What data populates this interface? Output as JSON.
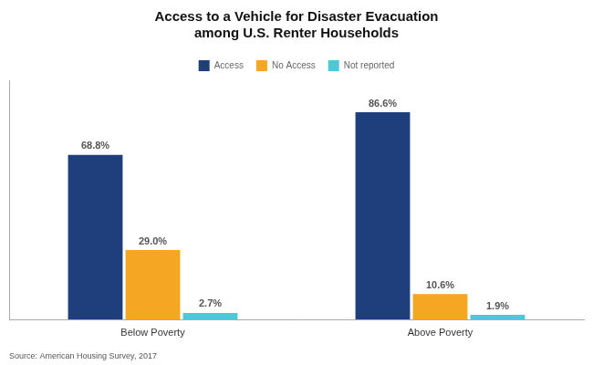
{
  "chart_data": {
    "type": "bar",
    "title": "Access to a Vehicle for Disaster Evacuation\namong U.S. Renter Households",
    "categories": [
      "Below Poverty",
      "Above Poverty"
    ],
    "series": [
      {
        "name": "Access",
        "color": "#1F3E7C",
        "values": [
          68.8,
          86.6
        ],
        "value_labels": [
          "68.8%",
          "86.6%"
        ]
      },
      {
        "name": "No Access",
        "color": "#F5A623",
        "values": [
          29.0,
          10.6
        ],
        "value_labels": [
          "29.0%",
          "10.6%"
        ]
      },
      {
        "name": "Not reported",
        "color": "#4DC8D8",
        "values": [
          2.7,
          1.9
        ],
        "value_labels": [
          "2.7%",
          "1.9%"
        ]
      }
    ],
    "ylim": [
      0,
      100
    ],
    "grid": false,
    "legend": "top",
    "data_labels": true,
    "tick_labels": "x",
    "annotations": [
      "Source: American Housing Survey, 2017"
    ]
  }
}
